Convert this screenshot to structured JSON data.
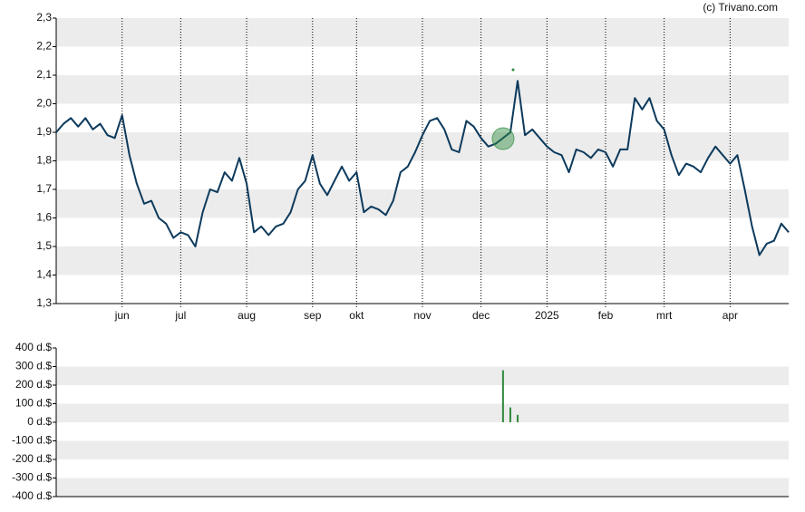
{
  "credit": "(c) Trivano.com",
  "chart_data": [
    {
      "type": "line",
      "color": "#0d3a5c",
      "categories": [
        null,
        null,
        null,
        null,
        null,
        null,
        null,
        null,
        null,
        "jun",
        null,
        null,
        null,
        null,
        null,
        null,
        null,
        "jul",
        null,
        null,
        null,
        null,
        null,
        null,
        null,
        null,
        "aug",
        null,
        null,
        null,
        null,
        null,
        null,
        null,
        null,
        "sep",
        null,
        null,
        null,
        null,
        null,
        "okt",
        null,
        null,
        null,
        null,
        null,
        null,
        null,
        null,
        "nov",
        null,
        null,
        null,
        null,
        null,
        null,
        null,
        "dec",
        null,
        null,
        null,
        null,
        null,
        null,
        null,
        null,
        "2025",
        null,
        null,
        null,
        null,
        null,
        null,
        null,
        "feb",
        null,
        null,
        null,
        null,
        null,
        null,
        null,
        "mrt",
        null,
        null,
        null,
        null,
        null,
        null,
        null,
        null,
        "apr",
        null,
        null,
        null,
        null,
        null,
        null,
        null,
        null
      ],
      "values": [
        1.9,
        1.93,
        1.95,
        1.92,
        1.95,
        1.91,
        1.93,
        1.89,
        1.88,
        1.96,
        1.82,
        1.72,
        1.65,
        1.66,
        1.6,
        1.58,
        1.53,
        1.55,
        1.54,
        1.5,
        1.62,
        1.7,
        1.69,
        1.76,
        1.73,
        1.81,
        1.72,
        1.55,
        1.57,
        1.54,
        1.57,
        1.58,
        1.62,
        1.7,
        1.73,
        1.82,
        1.72,
        1.68,
        1.73,
        1.78,
        1.73,
        1.76,
        1.62,
        1.64,
        1.63,
        1.61,
        1.66,
        1.76,
        1.78,
        1.83,
        1.89,
        1.94,
        1.95,
        1.91,
        1.84,
        1.83,
        1.94,
        1.92,
        1.88,
        1.85,
        1.86,
        1.88,
        1.9,
        2.08,
        1.89,
        1.91,
        1.88,
        1.85,
        1.83,
        1.82,
        1.76,
        1.84,
        1.83,
        1.81,
        1.84,
        1.83,
        1.78,
        1.84,
        1.84,
        2.02,
        1.98,
        2.02,
        1.94,
        1.91,
        1.82,
        1.75,
        1.79,
        1.78,
        1.76,
        1.81,
        1.85,
        1.82,
        1.79,
        1.82,
        1.7,
        1.57,
        1.47,
        1.51,
        1.52,
        1.58,
        1.55
      ],
      "ylim": [
        1.3,
        2.3
      ],
      "yticks": [
        {
          "value": 1.3,
          "label": "1,3"
        },
        {
          "value": 1.4,
          "label": "1,4"
        },
        {
          "value": 1.5,
          "label": "1,5"
        },
        {
          "value": 1.6,
          "label": "1,6"
        },
        {
          "value": 1.7,
          "label": "1,7"
        },
        {
          "value": 1.8,
          "label": "1,8"
        },
        {
          "value": 1.9,
          "label": "1,9"
        },
        {
          "value": 2.0,
          "label": "2,0"
        },
        {
          "value": 2.1,
          "label": "2,1"
        },
        {
          "value": 2.2,
          "label": "2,2"
        },
        {
          "value": 2.3,
          "label": "2,3"
        }
      ]
    },
    {
      "type": "bar",
      "color": "#2e8b3e",
      "values": [
        0,
        0,
        0,
        0,
        0,
        0,
        0,
        0,
        0,
        0,
        0,
        0,
        0,
        0,
        0,
        0,
        0,
        0,
        0,
        0,
        0,
        0,
        0,
        0,
        0,
        0,
        0,
        0,
        0,
        0,
        0,
        0,
        0,
        0,
        0,
        0,
        0,
        0,
        0,
        0,
        0,
        0,
        0,
        0,
        0,
        0,
        0,
        0,
        0,
        0,
        0,
        0,
        0,
        0,
        0,
        0,
        0,
        0,
        0,
        0,
        0,
        280,
        80,
        40,
        0,
        0,
        0,
        0,
        0,
        0,
        0,
        0,
        0,
        0,
        0,
        0,
        0,
        0,
        0,
        0,
        0,
        0,
        0,
        0,
        0,
        0,
        0,
        0,
        0,
        0,
        0,
        0,
        0,
        0,
        0,
        0,
        0,
        0,
        0,
        0,
        0
      ],
      "ylim": [
        -400,
        400
      ],
      "yticks": [
        {
          "value": -400,
          "label": "-400 d.$"
        },
        {
          "value": -300,
          "label": "-300 d.$"
        },
        {
          "value": -200,
          "label": "-200 d.$"
        },
        {
          "value": -100,
          "label": "-100 d.$"
        },
        {
          "value": 0,
          "label": "0 d.$"
        },
        {
          "value": 100,
          "label": "100 d.$"
        },
        {
          "value": 200,
          "label": "200 d.$"
        },
        {
          "value": 300,
          "label": "300 d.$"
        },
        {
          "value": 400,
          "label": "400 d.$"
        }
      ]
    }
  ]
}
